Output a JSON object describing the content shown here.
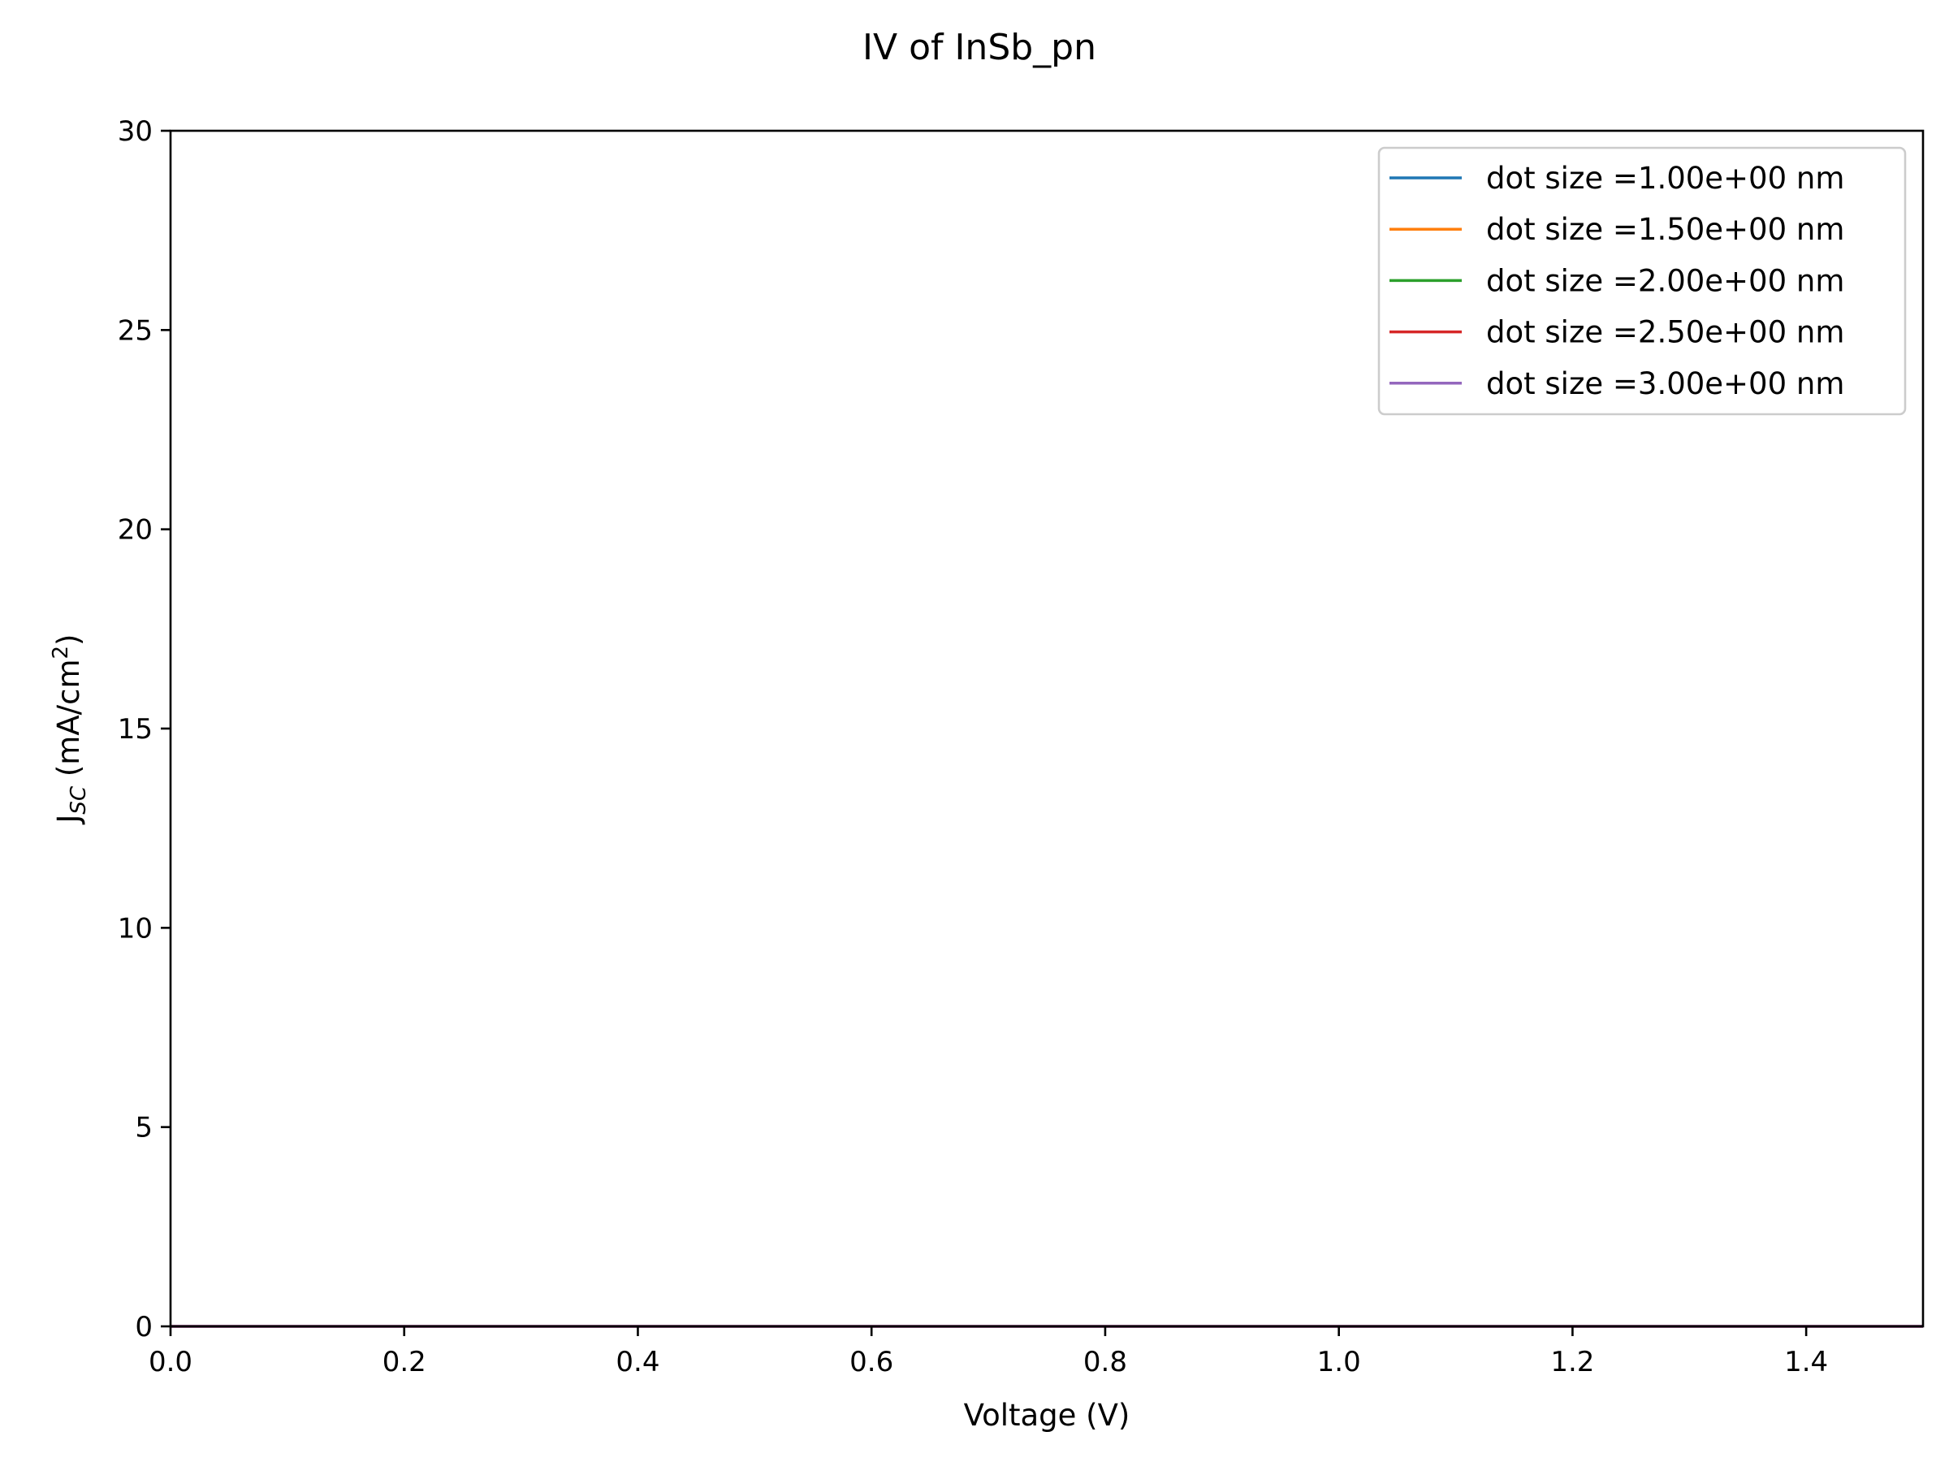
{
  "chart_data": {
    "type": "line",
    "title": "IV of InSb_pn",
    "xlabel": "Voltage (V)",
    "ylabel": {
      "main": "J",
      "subscript": "SC",
      "unit_prefix": " (mA/cm",
      "unit_superscript": "2",
      "unit_suffix": ")"
    },
    "xlim": [
      0,
      1.5
    ],
    "ylim": [
      0,
      30
    ],
    "x_ticks": [
      0.0,
      0.2,
      0.4,
      0.6,
      0.8,
      1.0,
      1.2,
      1.4
    ],
    "x_tick_labels": [
      "0.0",
      "0.2",
      "0.4",
      "0.6",
      "0.8",
      "1.0",
      "1.2",
      "1.4"
    ],
    "y_ticks": [
      0,
      5,
      10,
      15,
      20,
      25,
      30
    ],
    "y_tick_labels": [
      "0",
      "5",
      "10",
      "15",
      "20",
      "25",
      "30"
    ],
    "grid": false,
    "legend_position": "top-right",
    "series": [
      {
        "name": "dot size =1.00e+00 nm",
        "color": "#1f77b4",
        "x": [
          0.0,
          1.5
        ],
        "y": [
          0,
          0
        ]
      },
      {
        "name": "dot size =1.50e+00 nm",
        "color": "#ff7f0e",
        "x": [
          0.0,
          1.5
        ],
        "y": [
          0,
          0
        ]
      },
      {
        "name": "dot size =2.00e+00 nm",
        "color": "#2ca02c",
        "x": [
          0.0,
          1.5
        ],
        "y": [
          0,
          0
        ]
      },
      {
        "name": "dot size =2.50e+00 nm",
        "color": "#d62728",
        "x": [
          0.0,
          1.5
        ],
        "y": [
          0,
          0
        ]
      },
      {
        "name": "dot size =3.00e+00 nm",
        "color": "#9467bd",
        "x": [
          0.0,
          1.5
        ],
        "y": [
          0,
          0
        ]
      }
    ]
  }
}
